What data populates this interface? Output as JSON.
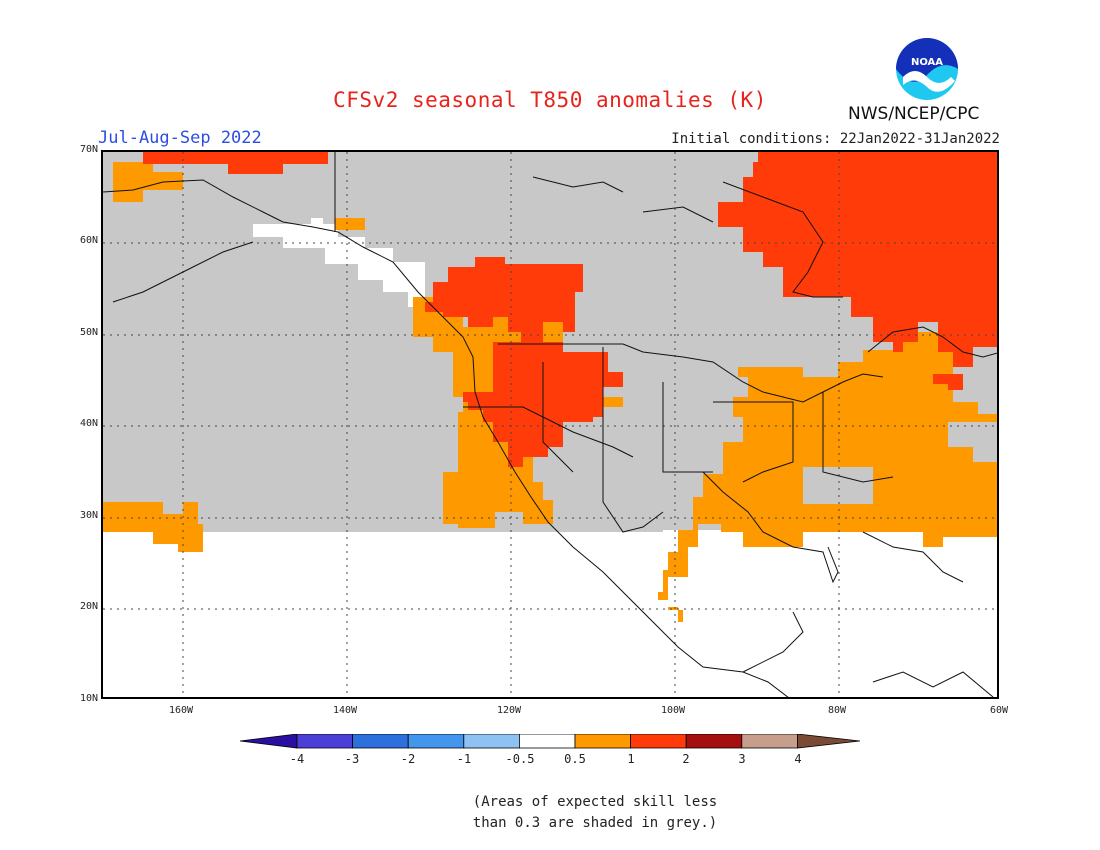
{
  "header": {
    "title": "CFSv2 seasonal T850 anomalies (K)",
    "period": "Jul-Aug-Sep 2022",
    "initial_conditions": "Initial conditions: 22Jan2022-31Jan2022",
    "organization": "NWS/NCEP/CPC",
    "logo_text": "NOAA"
  },
  "axes": {
    "lat_labels": [
      "70N",
      "60N",
      "50N",
      "40N",
      "30N",
      "20N",
      "10N"
    ],
    "lon_labels": [
      "160W",
      "140W",
      "120W",
      "100W",
      "80W",
      "60W"
    ]
  },
  "colorbar": {
    "tick_labels": [
      "-4",
      "-3",
      "-2",
      "-1",
      "-0.5",
      "0.5",
      "1",
      "2",
      "3",
      "4"
    ],
    "colors": [
      "#2b0fa0",
      "#4a3fd6",
      "#2d6fdc",
      "#4495ee",
      "#8ec2f2",
      "#ffffff",
      "#ff9900",
      "#ff3b0a",
      "#a50f0f",
      "#c79e8c",
      "#7a4a35"
    ]
  },
  "note": {
    "line1": "(Areas of expected skill less",
    "line2": "than 0.3 are shaded in grey.)"
  },
  "legend_colors": {
    "grey": "#c8c8c8",
    "orange": "#ff9900",
    "red": "#ff3b0a"
  }
}
